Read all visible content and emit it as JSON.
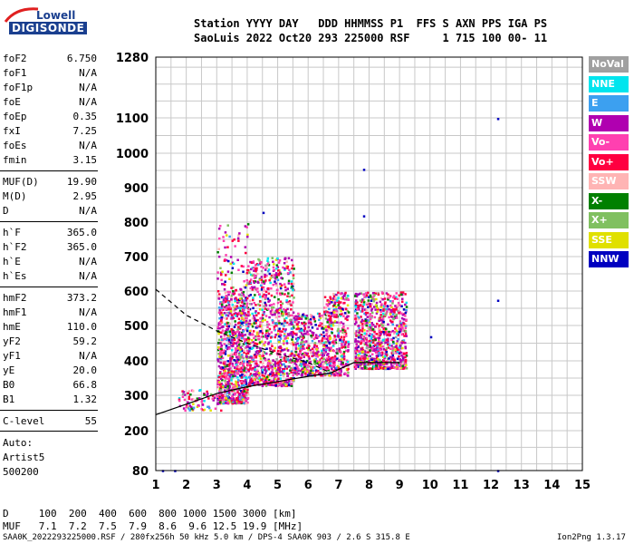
{
  "logo": {
    "line1": "Lowell",
    "line2": "DIGISONDE"
  },
  "header": {
    "labels": "Station YYYY DAY   DDD HHMMSS P1  FFS S AXN PPS IGA PS",
    "values": "SaoLuis 2022 Oct20 293 225000 RSF     1 715 100 00- 11"
  },
  "params": [
    {
      "name": "foF2",
      "value": "6.750"
    },
    {
      "name": "foF1",
      "value": "N/A"
    },
    {
      "name": "foF1p",
      "value": "N/A"
    },
    {
      "name": "foE",
      "value": "N/A"
    },
    {
      "name": "foEp",
      "value": "0.35"
    },
    {
      "name": "fxI",
      "value": "7.25"
    },
    {
      "name": "foEs",
      "value": "N/A"
    },
    {
      "name": "fmin",
      "value": "3.15"
    },
    {
      "name": "MUF(D)",
      "value": "19.90"
    },
    {
      "name": "M(D)",
      "value": "2.95"
    },
    {
      "name": "D",
      "value": "N/A"
    },
    {
      "name": "h`F",
      "value": "365.0"
    },
    {
      "name": "h`F2",
      "value": "365.0"
    },
    {
      "name": "h`E",
      "value": "N/A"
    },
    {
      "name": "h`Es",
      "value": "N/A"
    },
    {
      "name": "hmF2",
      "value": "373.2"
    },
    {
      "name": "hmF1",
      "value": "N/A"
    },
    {
      "name": "hmE",
      "value": "110.0"
    },
    {
      "name": "yF2",
      "value": "59.2"
    },
    {
      "name": "yF1",
      "value": "N/A"
    },
    {
      "name": "yE",
      "value": "20.0"
    },
    {
      "name": "B0",
      "value": "66.8"
    },
    {
      "name": "B1",
      "value": "1.32"
    },
    {
      "name": "C-level",
      "value": "55"
    }
  ],
  "auto": {
    "l1": "Auto:",
    "l2": "Artist5",
    "l3": "500200"
  },
  "legend": [
    {
      "label": "NoVal",
      "color": "#a0a0a0"
    },
    {
      "label": "NNE",
      "color": "#00e5ee"
    },
    {
      "label": "E",
      "color": "#3ca0f0"
    },
    {
      "label": "W",
      "color": "#b000b0"
    },
    {
      "label": "Vo-",
      "color": "#ff40b0"
    },
    {
      "label": "Vo+",
      "color": "#ff0040"
    },
    {
      "label": "SSW",
      "color": "#ffb4b4"
    },
    {
      "label": "X-",
      "color": "#008000"
    },
    {
      "label": "X+",
      "color": "#80c060"
    },
    {
      "label": "SSE",
      "color": "#e0e000"
    },
    {
      "label": "NNW",
      "color": "#0000c0"
    }
  ],
  "muf_table": {
    "d_row": "D     100  200  400  600  800 1000 1500 3000 [km]",
    "muf_row": "MUF   7.1  7.2  7.5  7.9  8.6  9.6 12.5 19.9 [MHz]"
  },
  "footer": {
    "left": "SAA0K_2022293225000.RSF / 280fx256h 50 kHz 5.0 km / DPS-4 SAA0K 903 / 2.6 S 315.8 E",
    "right": "Ion2Png 1.3.17"
  },
  "chart_data": {
    "type": "scatter",
    "xlim": [
      1,
      15
    ],
    "ylim": [
      80,
      1280
    ],
    "x_ticks": [
      1,
      2,
      3,
      4,
      5,
      6,
      7,
      8,
      9,
      10,
      11,
      12,
      13,
      14,
      15
    ],
    "y_ticks": [
      80,
      200,
      300,
      400,
      500,
      600,
      700,
      800,
      900,
      1000,
      1100,
      1280
    ],
    "grid": true,
    "y_scale": "piecewise",
    "echo_clusters": [
      {
        "x": [
          3.0,
          4.0
        ],
        "y": [
          280,
          600
        ],
        "density": "high"
      },
      {
        "x": [
          4.0,
          5.5
        ],
        "y": [
          330,
          700
        ],
        "density": "high"
      },
      {
        "x": [
          5.5,
          6.5
        ],
        "y": [
          360,
          540
        ],
        "density": "medium"
      },
      {
        "x": [
          6.5,
          7.3
        ],
        "y": [
          360,
          600
        ],
        "density": "medium"
      },
      {
        "x": [
          7.5,
          9.2
        ],
        "y": [
          380,
          600
        ],
        "density": "high"
      },
      {
        "x": [
          1.7,
          3.2
        ],
        "y": [
          260,
          320
        ],
        "density": "low"
      },
      {
        "x": [
          3.0,
          4.0
        ],
        "y": [
          600,
          800
        ],
        "density": "low"
      }
    ],
    "isolated_points": [
      {
        "x": 1.2,
        "y": 82
      },
      {
        "x": 1.6,
        "y": 82
      },
      {
        "x": 12.2,
        "y": 575
      },
      {
        "x": 12.2,
        "y": 1100
      },
      {
        "x": 12.2,
        "y": 82
      },
      {
        "x": 7.8,
        "y": 955
      },
      {
        "x": 7.8,
        "y": 820
      },
      {
        "x": 4.5,
        "y": 830
      },
      {
        "x": 10.0,
        "y": 470
      }
    ],
    "profile_solid": [
      [
        1,
        245
      ],
      [
        2,
        275
      ],
      [
        3,
        305
      ],
      [
        4,
        325
      ],
      [
        5,
        340
      ],
      [
        6,
        355
      ],
      [
        6.75,
        365
      ]
    ],
    "profile_upper": [
      [
        6.75,
        365
      ],
      [
        7.5,
        395
      ],
      [
        9.0,
        395
      ]
    ],
    "profile_dashed": [
      [
        1,
        605
      ],
      [
        2,
        530
      ],
      [
        3,
        485
      ],
      [
        4,
        450
      ],
      [
        5,
        420
      ],
      [
        6,
        395
      ],
      [
        6.75,
        365
      ]
    ]
  }
}
